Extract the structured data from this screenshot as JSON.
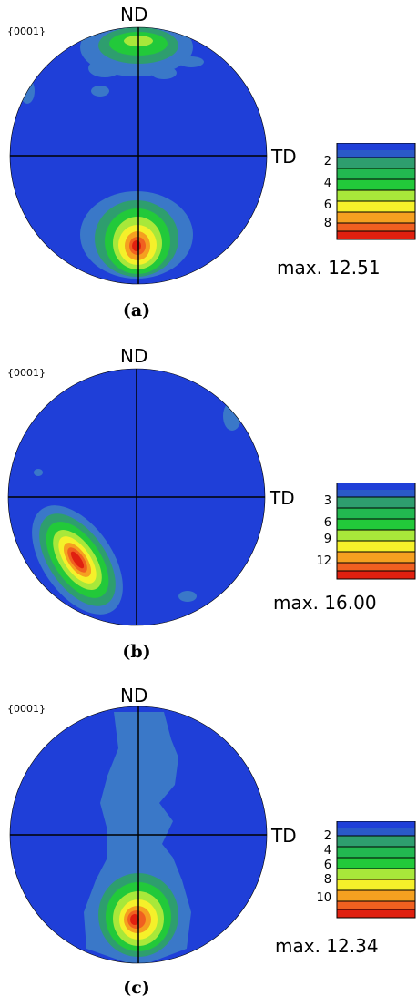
{
  "panels": [
    {
      "plane": "{0001}",
      "nd": "ND",
      "td": "TD",
      "ticks": [
        "2",
        "4",
        "6",
        "8"
      ],
      "max": "max. 12.51",
      "caption": "(a)"
    },
    {
      "plane": "{0001}",
      "nd": "ND",
      "td": "TD",
      "ticks": [
        "3",
        "6",
        "9",
        "12"
      ],
      "max": "max. 16.00",
      "caption": "(b)"
    },
    {
      "plane": "{0001}",
      "nd": "ND",
      "td": "TD",
      "ticks": [
        "2",
        "4",
        "6",
        "8",
        "10"
      ],
      "max": "max. 12.34",
      "caption": "(c)"
    }
  ],
  "colors": {
    "background": "#1f3fd8",
    "level1": "#3a78c8",
    "level2": "#2e9e6e",
    "level3": "#22c93a",
    "level4": "#a8e83a",
    "level5": "#f5f02a",
    "level6": "#f5a020",
    "level7": "#f06020",
    "level8": "#e02010"
  }
}
